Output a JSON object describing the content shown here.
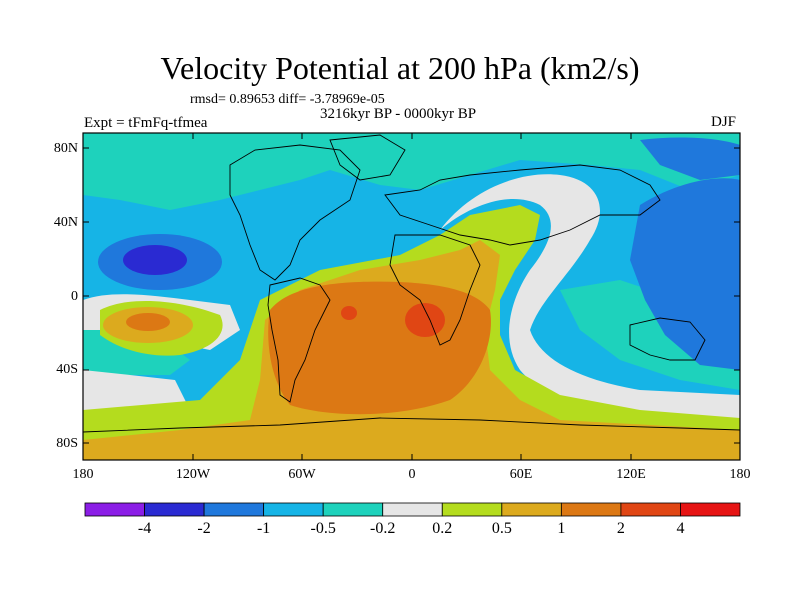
{
  "title": "Velocity Potential at 200 hPa (km2/s)",
  "stats": "rmsd= 0.89653 diff= -3.78969e-05",
  "experiment": "Expt = tFmFq-tfmea",
  "period": "3216kyr BP - 0000kyr BP",
  "season": "DJF",
  "y_ticks": [
    "80N",
    "40N",
    "0",
    "40S",
    "80S"
  ],
  "x_ticks": [
    "180",
    "120W",
    "60W",
    "0",
    "60E",
    "120E",
    "180"
  ],
  "colorbar": {
    "labels": [
      "-4",
      "-2",
      "-1",
      "-0.5",
      "-0.2",
      "0.2",
      "0.5",
      "1",
      "2",
      "4"
    ],
    "colors": [
      "#8b1ee6",
      "#2a2ad2",
      "#1f78dc",
      "#16b4e6",
      "#1ed2bc",
      "#e6e6e6",
      "#b4dc1e",
      "#dcaa1e",
      "#dc7814",
      "#e04614",
      "#e61414"
    ]
  },
  "field_colors": {
    "ocean_base": "#16b4e6",
    "neg_weak": "#1ed2bc",
    "neutral": "#e6e6e6",
    "pos_weak": "#b4dc1e",
    "pos_mid": "#dcaa1e",
    "pos_strong": "#dc7814",
    "pos_max": "#e04614",
    "neg_mid": "#1f78dc",
    "neg_strong": "#2a2ad2"
  }
}
